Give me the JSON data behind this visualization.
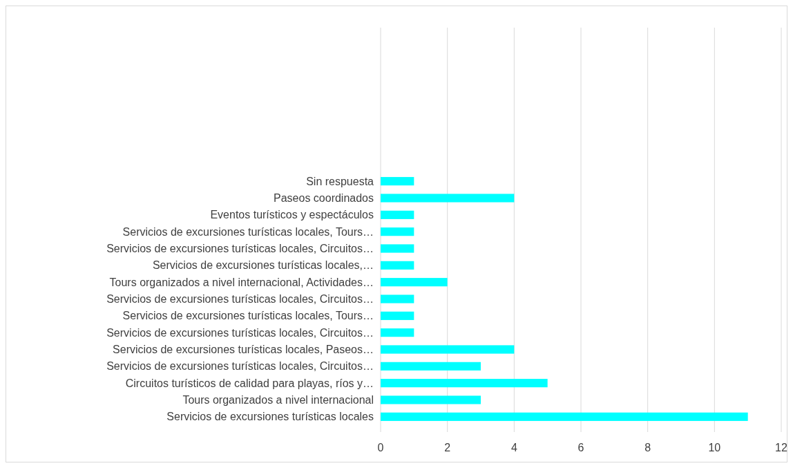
{
  "chart_data": {
    "type": "bar",
    "orientation": "horizontal",
    "categories": [
      "Sin respuesta",
      "Paseos coordinados",
      "Eventos turísticos y espectáculos",
      "Servicios de excursiones turísticas locales, Tours…",
      "Servicios de excursiones turísticas locales, Circuitos…",
      "Servicios de excursiones turísticas locales,…",
      "Tours organizados a nivel internacional, Actividades…",
      "Servicios de excursiones turísticas locales, Circuitos…",
      "Servicios de excursiones turísticas locales, Tours…",
      "Servicios de excursiones turísticas locales, Circuitos…",
      "Servicios de excursiones turísticas locales, Paseos…",
      "Servicios de excursiones turísticas locales, Circuitos…",
      "Circuitos turísticos de calidad para playas, ríos y…",
      "Tours organizados a nivel internacional",
      "Servicios de excursiones turísticas locales"
    ],
    "values": [
      1,
      4,
      1,
      1,
      1,
      1,
      2,
      1,
      1,
      1,
      4,
      3,
      5,
      3,
      11
    ],
    "color": "#00ffff",
    "xlim": [
      0,
      12
    ],
    "xticks": [
      0,
      2,
      4,
      6,
      8,
      10,
      12
    ],
    "grid": "x"
  }
}
